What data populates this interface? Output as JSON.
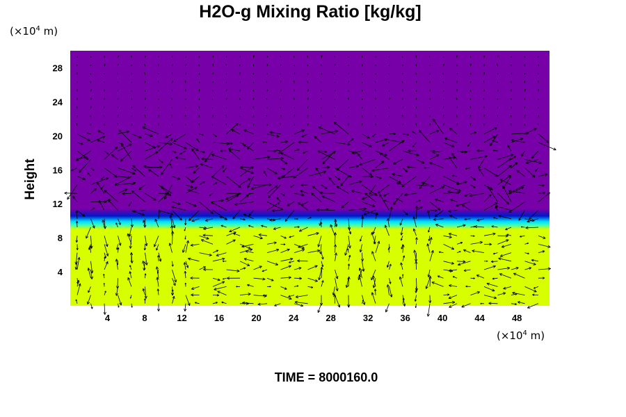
{
  "chart_data": {
    "type": "heatmap",
    "title": "H2O-g Mixing Ratio [kg/kg]",
    "ylabel": "Height",
    "xlabel": "",
    "x_unit_prefix": "(×10",
    "x_unit_exp": "4",
    "x_unit_suffix": " m)",
    "y_unit_prefix": "(×10",
    "y_unit_exp": "4",
    "y_unit_suffix": " m)",
    "xlim": [
      0,
      51.5
    ],
    "ylim": [
      0,
      30
    ],
    "x_ticks": [
      "4",
      "8",
      "12",
      "16",
      "20",
      "24",
      "28",
      "32",
      "36",
      "40",
      "44",
      "48"
    ],
    "y_ticks": [
      "4",
      "8",
      "12",
      "16",
      "20",
      "24",
      "28"
    ],
    "grid": false,
    "overlay": "wind vectors",
    "regions": [
      {
        "from_y": 0,
        "to_y": 9.2,
        "color": "#d8ff00"
      },
      {
        "from_y": 9.2,
        "to_y": 10.0,
        "color": "#00ddff"
      },
      {
        "from_y": 10.0,
        "to_y": 11.0,
        "color": "#0018c8"
      },
      {
        "from_y": 11.0,
        "to_y": 30,
        "color": "#7800a8"
      }
    ],
    "time_label": "TIME = 8000160.0"
  }
}
